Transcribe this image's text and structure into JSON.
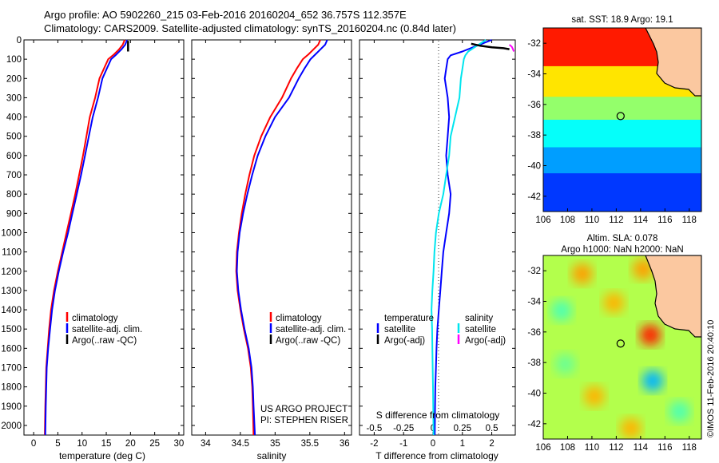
{
  "header": {
    "line1": "Argo profile: AO 5902260_215 03-Feb-2016 20160204_652 36.757S 112.357E",
    "line2": "Climatology: CARS2009. Satellite-adjusted climatology: synTS_20160204.nc (0.84d later)"
  },
  "credits": {
    "project": "US ARGO PROJECT",
    "pi": "PI: STEPHEN RISER",
    "stamp": "©IMOS 11-Feb-2016 20:40:10"
  },
  "colors": {
    "climatology": "#ff0000",
    "satellite": "#0000ff",
    "argo": "#000000",
    "sal_satellite": "#00e5ee",
    "sal_argo": "#ff00ff",
    "land": "#fbc8a0"
  },
  "chart_data": [
    {
      "type": "line",
      "title": "",
      "xlabel": "temperature (deg C)",
      "ylabel": "",
      "xlim": [
        -2,
        31
      ],
      "ylim": [
        2050,
        0
      ],
      "xticks": [
        "0",
        "5",
        "10",
        "15",
        "20",
        "25",
        "30"
      ],
      "yticks": [
        "0",
        "100",
        "200",
        "300",
        "400",
        "500",
        "600",
        "700",
        "800",
        "900",
        "1000",
        "1100",
        "1200",
        "1300",
        "1400",
        "1500",
        "1600",
        "1700",
        "1800",
        "1900",
        "2000"
      ],
      "legend": [
        "climatology",
        "satellite-adj. clim.",
        "Argo(..raw -QC)"
      ],
      "legend_position": "lower-right",
      "series": [
        {
          "name": "climatology",
          "color": "climatology",
          "x": [
            18.8,
            18.4,
            17.6,
            16.6,
            15.4,
            14.5,
            13.6,
            12.7,
            11.6,
            10.9,
            10.2,
            9.4,
            8.6,
            7.7,
            6.8,
            5.9,
            5.0,
            4.2,
            3.6,
            3.2,
            2.9,
            2.6,
            2.5,
            2.4,
            2.3
          ],
          "y": [
            0,
            25,
            50,
            75,
            100,
            150,
            200,
            300,
            400,
            500,
            600,
            700,
            800,
            900,
            1000,
            1100,
            1200,
            1300,
            1400,
            1500,
            1600,
            1700,
            1800,
            1900,
            2050
          ]
        },
        {
          "name": "satellite-adj. clim.",
          "color": "satellite",
          "x": [
            19.3,
            18.9,
            18.1,
            17.1,
            16.0,
            15.1,
            14.2,
            13.3,
            12.2,
            11.4,
            10.6,
            9.8,
            8.9,
            8.0,
            7.1,
            6.1,
            5.2,
            4.4,
            3.8,
            3.4,
            3.0,
            2.7,
            2.6,
            2.5,
            2.4
          ],
          "y": [
            0,
            25,
            50,
            75,
            100,
            150,
            200,
            300,
            400,
            500,
            600,
            700,
            800,
            900,
            1000,
            1100,
            1200,
            1300,
            1400,
            1500,
            1600,
            1700,
            1800,
            1900,
            2050
          ]
        },
        {
          "name": "Argo(..raw -QC)",
          "color": "argo",
          "x": [
            19.5,
            19.5
          ],
          "y": [
            5,
            60
          ]
        }
      ]
    },
    {
      "type": "line",
      "title": "",
      "xlabel": "salinity",
      "ylabel": "",
      "xlim": [
        33.8,
        36.1
      ],
      "ylim": [
        2050,
        0
      ],
      "xticks": [
        "34",
        "34.5",
        "35",
        "35.5",
        "36"
      ],
      "legend": [
        "climatology",
        "satellite-adj. clim.",
        "Argo(..raw -QC)"
      ],
      "legend_position": "lower-right",
      "series": [
        {
          "name": "climatology",
          "color": "climatology",
          "x": [
            35.65,
            35.62,
            35.55,
            35.48,
            35.4,
            35.31,
            35.23,
            35.1,
            34.93,
            34.8,
            34.7,
            34.63,
            34.57,
            34.52,
            34.48,
            34.45,
            34.44,
            34.46,
            34.5,
            34.55,
            34.61,
            34.65,
            34.67,
            34.68,
            34.69
          ],
          "y": [
            0,
            25,
            50,
            75,
            100,
            150,
            200,
            300,
            400,
            500,
            600,
            700,
            800,
            900,
            1000,
            1100,
            1200,
            1300,
            1400,
            1500,
            1600,
            1700,
            1800,
            1900,
            2050
          ]
        },
        {
          "name": "satellite-adj. clim.",
          "color": "satellite",
          "x": [
            35.75,
            35.72,
            35.65,
            35.58,
            35.51,
            35.42,
            35.34,
            35.2,
            35.0,
            34.86,
            34.75,
            34.67,
            34.6,
            34.54,
            34.49,
            34.46,
            34.45,
            34.47,
            34.51,
            34.56,
            34.62,
            34.66,
            34.68,
            34.69,
            34.71
          ],
          "y": [
            0,
            25,
            50,
            75,
            100,
            150,
            200,
            300,
            400,
            500,
            600,
            700,
            800,
            900,
            1000,
            1100,
            1200,
            1300,
            1400,
            1500,
            1600,
            1700,
            1800,
            1900,
            2050
          ]
        }
      ]
    },
    {
      "type": "line",
      "title": "",
      "xlabel": "T difference from climatology",
      "x2label": "S difference from climatology",
      "ylabel": "",
      "xlim": [
        -2.5,
        2.8
      ],
      "ylim": [
        2050,
        0
      ],
      "xticks": [
        "-2",
        "-1",
        "0",
        "1",
        "2"
      ],
      "x2ticks": [
        "-0.5",
        "-0.25",
        "0",
        "0.25",
        "0.5"
      ],
      "legend": [
        {
          "label": "temperature",
          "color": ""
        },
        {
          "label": "satellite",
          "color": "satellite"
        },
        {
          "label": "Argo(-adj)",
          "color": "argo"
        },
        {
          "label": "salinity",
          "color": ""
        },
        {
          "label": "satellite",
          "color": "sal_satellite"
        },
        {
          "label": "Argo(-adj)",
          "color": "sal_argo"
        }
      ],
      "legend_position": "lower-right",
      "series": [
        {
          "name": "T satellite",
          "color": "satellite",
          "x": [
            2.0,
            1.5,
            1.0,
            0.6,
            0.5,
            0.45,
            0.4,
            0.5,
            0.55,
            0.5,
            0.45,
            0.5,
            0.6,
            0.55,
            0.45,
            0.35,
            0.3,
            0.25,
            0.2,
            0.15,
            0.12,
            0.1,
            0.08,
            0.07,
            0.06
          ],
          "y": [
            0,
            30,
            60,
            80,
            100,
            150,
            200,
            300,
            400,
            500,
            600,
            700,
            800,
            900,
            1000,
            1100,
            1200,
            1300,
            1400,
            1500,
            1600,
            1700,
            1800,
            1900,
            2050
          ]
        },
        {
          "name": "S satellite",
          "color": "sal_satellite",
          "x": [
            1.8,
            1.5,
            1.2,
            1.1,
            1.05,
            1.0,
            0.95,
            0.9,
            0.75,
            0.6,
            0.55,
            0.45,
            0.35,
            0.2,
            0.1,
            0.05,
            0.02,
            -0.02,
            -0.05,
            -0.03,
            -0.02,
            -0.01,
            0.0,
            0.01,
            0.02
          ],
          "y": [
            0,
            30,
            60,
            80,
            100,
            150,
            200,
            300,
            400,
            500,
            600,
            700,
            800,
            900,
            1000,
            1100,
            1200,
            1300,
            1400,
            1500,
            1600,
            1700,
            1800,
            1900,
            2050
          ]
        },
        {
          "name": "T Argo",
          "color": "argo",
          "x": [
            1.3,
            1.6,
            2.0,
            2.4,
            2.6
          ],
          "y": [
            20,
            30,
            38,
            43,
            48
          ]
        },
        {
          "name": "S Argo",
          "color": "sal_argo",
          "x": [
            2.6,
            2.68,
            2.72,
            2.75
          ],
          "y": [
            25,
            35,
            48,
            60
          ]
        }
      ]
    },
    {
      "type": "heatmap",
      "title": "sat. SST: 18.9 Argo: 19.1",
      "xlim": [
        106,
        119
      ],
      "ylim": [
        -43,
        -31
      ],
      "xticks": [
        "106",
        "108",
        "110",
        "112",
        "114",
        "116",
        "118"
      ],
      "yticks": [
        "-32",
        "-34",
        "-36",
        "-38",
        "-40",
        "-42"
      ],
      "colorscale": "jet",
      "zones": [
        {
          "lat_top": -31.0,
          "lat_bottom": -33.5,
          "value": 0.85
        },
        {
          "lat_top": -33.5,
          "lat_bottom": -35.5,
          "value": 0.65
        },
        {
          "lat_top": -35.5,
          "lat_bottom": -37.0,
          "value": 0.52
        },
        {
          "lat_top": -37.0,
          "lat_bottom": -38.8,
          "value": 0.38
        },
        {
          "lat_top": -38.8,
          "lat_bottom": -40.5,
          "value": 0.28
        },
        {
          "lat_top": -40.5,
          "lat_bottom": -43.0,
          "value": 0.18
        }
      ],
      "marker": {
        "lon": 112.357,
        "lat": -36.757
      }
    },
    {
      "type": "heatmap",
      "title": "Altim. SLA: 0.078",
      "subtitle": "Argo h1000: NaN h2000: NaN",
      "xlim": [
        106,
        119
      ],
      "ylim": [
        -43,
        -31
      ],
      "xticks": [
        "106",
        "108",
        "110",
        "112",
        "114",
        "116",
        "118"
      ],
      "yticks": [
        "-32",
        "-34",
        "-36",
        "-38",
        "-40",
        "-42"
      ],
      "colorscale": "jet",
      "background_value": 0.55,
      "blobs": [
        {
          "lon": 114.8,
          "lat": -36.2,
          "value": 0.85
        },
        {
          "lon": 115.0,
          "lat": -39.2,
          "value": 0.3
        },
        {
          "lon": 109.2,
          "lat": -32.2,
          "value": 0.72
        },
        {
          "lon": 107.5,
          "lat": -34.6,
          "value": 0.45
        },
        {
          "lon": 111.8,
          "lat": -34.1,
          "value": 0.7
        },
        {
          "lon": 114.2,
          "lat": -31.9,
          "value": 0.72
        },
        {
          "lon": 107.8,
          "lat": -38.1,
          "value": 0.48
        },
        {
          "lon": 110.2,
          "lat": -40.2,
          "value": 0.7
        },
        {
          "lon": 117.2,
          "lat": -41.2,
          "value": 0.45
        },
        {
          "lon": 113.2,
          "lat": -42.3,
          "value": 0.7
        }
      ],
      "marker": {
        "lon": 112.357,
        "lat": -36.757
      }
    }
  ]
}
